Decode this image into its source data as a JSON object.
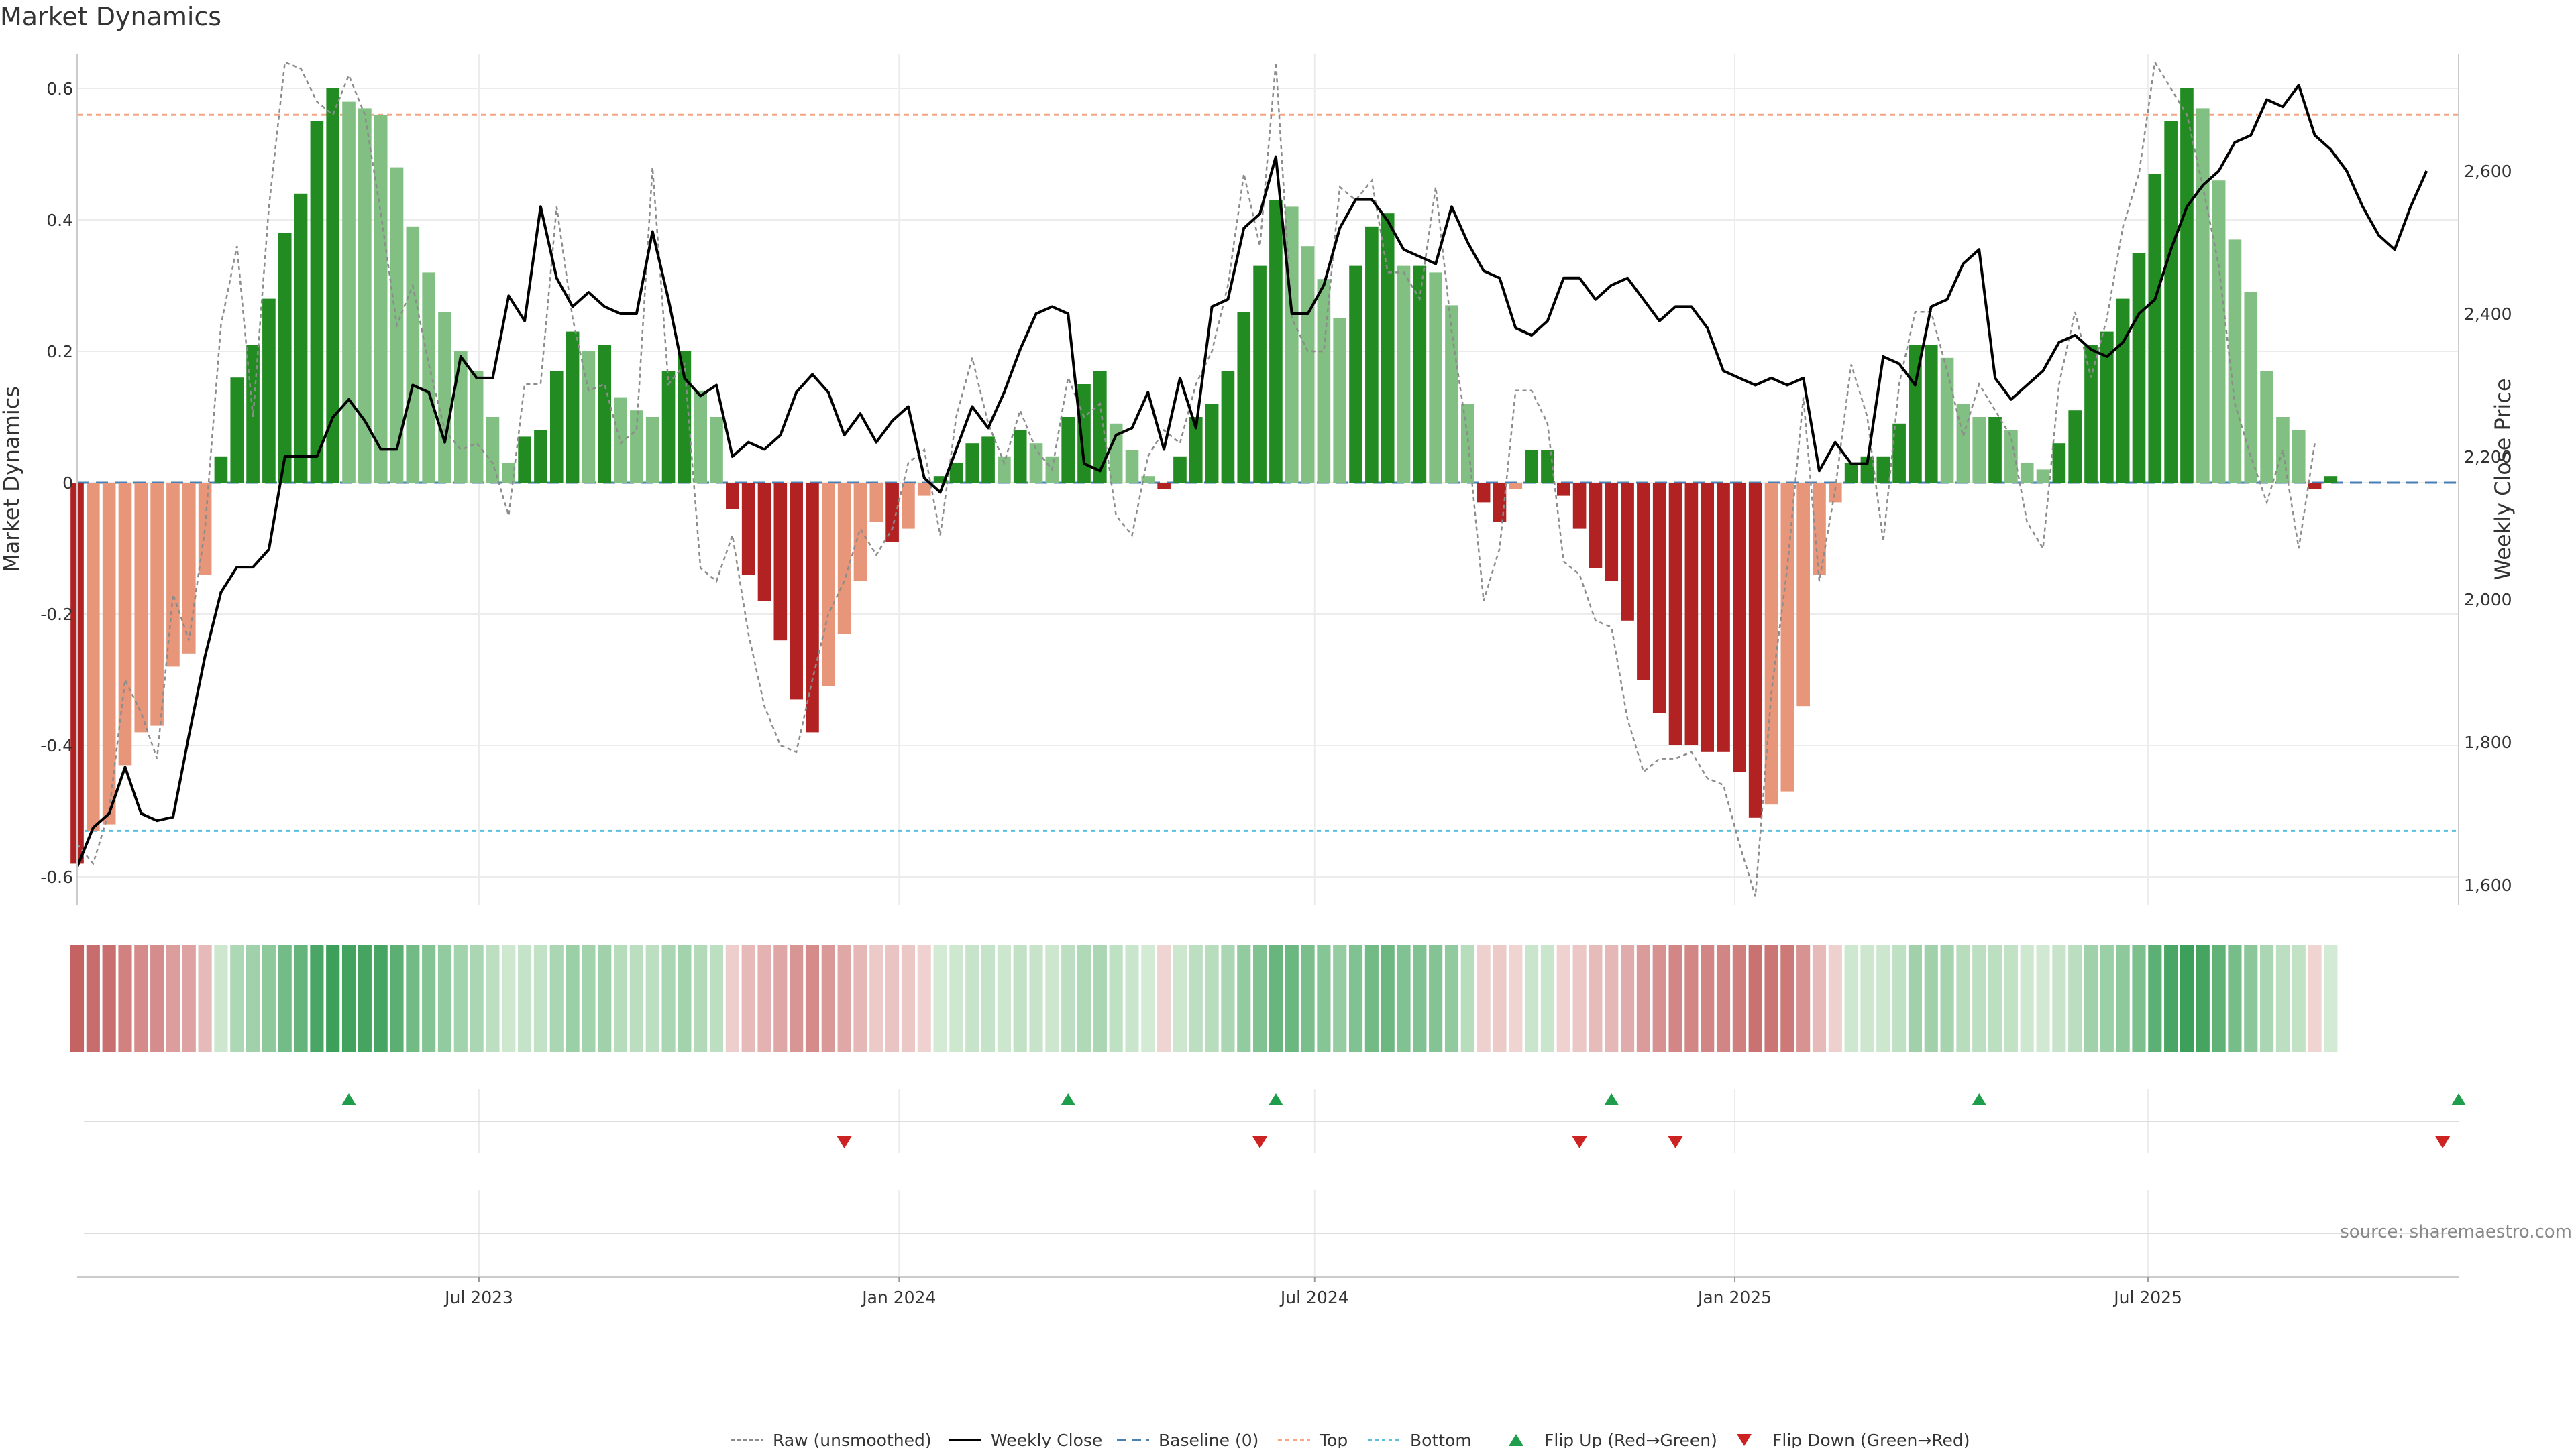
{
  "title": "Market Dynamics",
  "source": "source: sharemaestro.com",
  "chart_data": {
    "type": "bar",
    "title": "Market Dynamics",
    "ylabel": "Market Dynamics",
    "y2label": "Weekly Close Price",
    "ylim": [
      -0.65,
      0.65
    ],
    "y2lim": [
      1580,
      2800
    ],
    "yticks": [
      "-0.6",
      "-0.4",
      "-0.2",
      "0",
      "0.2",
      "0.4",
      "0.6"
    ],
    "y2ticks": [
      "1,600",
      "1,800",
      "2,000",
      "2,200",
      "2,400",
      "2,600"
    ],
    "x_start": "2023-01-06",
    "x_end": "2025-11-14",
    "xticks": [
      {
        "date": "2023-07-01",
        "label": "Jul 2023"
      },
      {
        "date": "2024-01-01",
        "label": "Jan 2024"
      },
      {
        "date": "2024-07-01",
        "label": "Jul 2024"
      },
      {
        "date": "2025-01-01",
        "label": "Jan 2025"
      },
      {
        "date": "2025-07-01",
        "label": "Jul 2025"
      }
    ],
    "top_threshold": 0.56,
    "bottom_threshold": -0.53,
    "baseline": 0,
    "grid": true,
    "legend_position": "bottom-center",
    "colors": {
      "strong_up": "#228B22",
      "weak_up": "#82BF82",
      "strong_down": "#B22222",
      "weak_down": "#E8967A",
      "price": "#000000",
      "raw": "#8C8C8C",
      "baseline": "#4A7FB5",
      "top": "#F4A582",
      "bottom": "#5BC0DE",
      "flip_up": "#1E9E4A",
      "flip_down": "#CC2222"
    },
    "series": [
      {
        "name": "Market Dynamics (smoothed)",
        "values": [
          -0.58,
          -0.53,
          -0.52,
          -0.43,
          -0.38,
          -0.37,
          -0.28,
          -0.26,
          -0.14,
          0.04,
          0.16,
          0.21,
          0.28,
          0.38,
          0.44,
          0.55,
          0.6,
          0.58,
          0.57,
          0.56,
          0.48,
          0.39,
          0.32,
          0.26,
          0.2,
          0.17,
          0.1,
          0.03,
          0.07,
          0.08,
          0.17,
          0.23,
          0.2,
          0.21,
          0.13,
          0.11,
          0.1,
          0.17,
          0.2,
          0.14,
          0.1,
          -0.04,
          -0.14,
          -0.18,
          -0.24,
          -0.33,
          -0.38,
          -0.31,
          -0.23,
          -0.15,
          -0.06,
          -0.09,
          -0.07,
          -0.02,
          0.01,
          0.03,
          0.06,
          0.07,
          0.04,
          0.08,
          0.06,
          0.04,
          0.1,
          0.15,
          0.17,
          0.09,
          0.05,
          0.01,
          -0.01,
          0.04,
          0.1,
          0.12,
          0.17,
          0.26,
          0.33,
          0.43,
          0.42,
          0.36,
          0.31,
          0.25,
          0.33,
          0.39,
          0.41,
          0.33,
          0.33,
          0.32,
          0.27,
          0.12,
          -0.03,
          -0.06,
          -0.01,
          0.05,
          0.05,
          -0.02,
          -0.07,
          -0.13,
          -0.15,
          -0.21,
          -0.3,
          -0.35,
          -0.4,
          -0.4,
          -0.41,
          -0.41,
          -0.44,
          -0.51,
          -0.49,
          -0.47,
          -0.34,
          -0.14,
          -0.03,
          0.03,
          0.04,
          0.04,
          0.09,
          0.21,
          0.21,
          0.19,
          0.12,
          0.1,
          0.1,
          0.08,
          0.03,
          0.02,
          0.06,
          0.11,
          0.21,
          0.23,
          0.28,
          0.35,
          0.47,
          0.55,
          0.6,
          0.57,
          0.46,
          0.37,
          0.29,
          0.17,
          0.1,
          0.08,
          -0.01,
          0.01
        ]
      },
      {
        "name": "Raw (unsmoothed)",
        "values": [
          -0.55,
          -0.58,
          -0.5,
          -0.3,
          -0.35,
          -0.42,
          -0.17,
          -0.24,
          -0.07,
          0.24,
          0.36,
          0.1,
          0.42,
          0.64,
          0.63,
          0.58,
          0.56,
          0.62,
          0.56,
          0.41,
          0.24,
          0.3,
          0.18,
          0.08,
          0.05,
          0.06,
          0.03,
          -0.05,
          0.15,
          0.15,
          0.42,
          0.25,
          0.14,
          0.15,
          0.06,
          0.08,
          0.48,
          0.15,
          0.18,
          -0.13,
          -0.15,
          -0.08,
          -0.23,
          -0.34,
          -0.4,
          -0.41,
          -0.3,
          -0.2,
          -0.15,
          -0.07,
          -0.11,
          -0.07,
          0.03,
          0.05,
          -0.08,
          0.1,
          0.19,
          0.09,
          0.03,
          0.11,
          0.05,
          0.02,
          0.16,
          0.1,
          0.12,
          -0.05,
          -0.08,
          0.04,
          0.08,
          0.06,
          0.15,
          0.2,
          0.3,
          0.47,
          0.36,
          0.64,
          0.25,
          0.2,
          0.2,
          0.45,
          0.43,
          0.46,
          0.32,
          0.32,
          0.28,
          0.45,
          0.23,
          0.07,
          -0.18,
          -0.1,
          0.14,
          0.14,
          0.09,
          -0.12,
          -0.14,
          -0.21,
          -0.22,
          -0.36,
          -0.44,
          -0.42,
          -0.42,
          -0.41,
          -0.45,
          -0.46,
          -0.55,
          -0.63,
          -0.32,
          -0.13,
          0.13,
          -0.15,
          -0.01,
          0.18,
          0.1,
          -0.09,
          0.15,
          0.26,
          0.26,
          0.17,
          0.07,
          0.15,
          0.11,
          0.07,
          -0.06,
          -0.1,
          0.15,
          0.26,
          0.16,
          0.25,
          0.39,
          0.47,
          0.64,
          0.6,
          0.56,
          0.45,
          0.33,
          0.12,
          0.04,
          -0.03,
          0.05,
          -0.1,
          0.06
        ]
      },
      {
        "name": "Weekly Close",
        "values": [
          1625,
          1680,
          1700,
          1765,
          1700,
          1690,
          1695,
          1810,
          1920,
          2010,
          2045,
          2045,
          2070,
          2200,
          2200,
          2200,
          2255,
          2280,
          2250,
          2210,
          2210,
          2300,
          2290,
          2220,
          2340,
          2310,
          2310,
          2425,
          2390,
          2550,
          2450,
          2410,
          2430,
          2410,
          2400,
          2400,
          2515,
          2420,
          2310,
          2285,
          2300,
          2200,
          2220,
          2210,
          2230,
          2290,
          2315,
          2290,
          2230,
          2260,
          2220,
          2250,
          2270,
          2170,
          2150,
          2210,
          2270,
          2240,
          2290,
          2350,
          2400,
          2410,
          2400,
          2190,
          2180,
          2230,
          2240,
          2290,
          2210,
          2310,
          2240,
          2410,
          2420,
          2520,
          2540,
          2620,
          2400,
          2400,
          2440,
          2520,
          2560,
          2560,
          2530,
          2490,
          2480,
          2470,
          2550,
          2500,
          2460,
          2450,
          2380,
          2370,
          2390,
          2450,
          2450,
          2420,
          2440,
          2450,
          2420,
          2390,
          2410,
          2410,
          2380,
          2320,
          2310,
          2300,
          2310,
          2300,
          2310,
          2180,
          2220,
          2190,
          2190,
          2340,
          2330,
          2300,
          2410,
          2420,
          2470,
          2490,
          2310,
          2280,
          2300,
          2320,
          2360,
          2370,
          2350,
          2340,
          2360,
          2400,
          2420,
          2490,
          2550,
          2580,
          2600,
          2640,
          2650,
          2700,
          2690,
          2720,
          2650,
          2630,
          2600,
          2550,
          2510,
          2490,
          2550,
          2600
        ]
      }
    ],
    "flips_up": [
      "2023-05-05",
      "2024-03-15",
      "2024-06-14",
      "2024-11-08",
      "2025-04-18",
      "2025-11-14"
    ],
    "flips_down": [
      "2023-12-08",
      "2024-06-07",
      "2024-10-25",
      "2024-12-06",
      "2025-11-07"
    ],
    "legend": [
      {
        "key": "raw",
        "label": "Raw (unsmoothed)"
      },
      {
        "key": "price",
        "label": "Weekly Close"
      },
      {
        "key": "baseline",
        "label": "Baseline (0)"
      },
      {
        "key": "top",
        "label": "Top"
      },
      {
        "key": "bottom",
        "label": "Bottom"
      },
      {
        "key": "flip_up",
        "label": "Flip Up (Red→Green)"
      },
      {
        "key": "flip_down",
        "label": "Flip Down (Green→Red)"
      }
    ]
  }
}
